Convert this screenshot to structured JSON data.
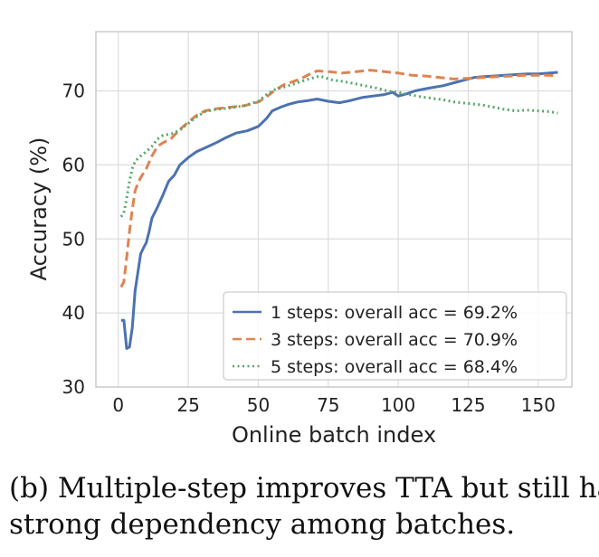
{
  "chart_data": {
    "type": "line",
    "xlabel": "Online batch index",
    "ylabel": "Accuracy (%)",
    "xlim": [
      -8,
      162
    ],
    "ylim": [
      30,
      78
    ],
    "xticks": [
      0,
      25,
      50,
      75,
      100,
      125,
      150
    ],
    "yticks": [
      30,
      40,
      50,
      60,
      70
    ],
    "grid": true,
    "legend_position": "lower-right",
    "series": [
      {
        "name": "1 steps: overall acc = 69.2%",
        "color": "#4c72b0",
        "style": "solid",
        "points": [
          [
            1,
            39
          ],
          [
            2,
            39
          ],
          [
            3,
            35.2
          ],
          [
            4,
            35.4
          ],
          [
            5,
            38
          ],
          [
            6,
            43
          ],
          [
            7,
            45.5
          ],
          [
            8,
            48
          ],
          [
            9,
            48.8
          ],
          [
            10,
            49.5
          ],
          [
            11,
            51
          ],
          [
            12,
            52.8
          ],
          [
            14,
            54.3
          ],
          [
            16,
            56
          ],
          [
            18,
            57.8
          ],
          [
            20,
            58.6
          ],
          [
            22,
            60
          ],
          [
            25,
            61
          ],
          [
            28,
            61.8
          ],
          [
            31,
            62.3
          ],
          [
            35,
            63
          ],
          [
            38,
            63.6
          ],
          [
            42,
            64.3
          ],
          [
            46,
            64.6
          ],
          [
            50,
            65.2
          ],
          [
            53,
            66.3
          ],
          [
            55,
            67.3
          ],
          [
            58,
            67.8
          ],
          [
            61,
            68.2
          ],
          [
            64,
            68.5
          ],
          [
            68,
            68.7
          ],
          [
            71,
            68.9
          ],
          [
            75,
            68.6
          ],
          [
            79,
            68.4
          ],
          [
            83,
            68.7
          ],
          [
            87,
            69.1
          ],
          [
            91,
            69.3
          ],
          [
            95,
            69.5
          ],
          [
            98,
            69.8
          ],
          [
            100,
            69.3
          ],
          [
            103,
            69.6
          ],
          [
            106,
            70
          ],
          [
            110,
            70.3
          ],
          [
            113,
            70.5
          ],
          [
            116,
            70.7
          ],
          [
            120,
            71.1
          ],
          [
            124,
            71.5
          ],
          [
            127,
            71.8
          ],
          [
            130,
            71.9
          ],
          [
            134,
            72
          ],
          [
            138,
            72.1
          ],
          [
            142,
            72.2
          ],
          [
            146,
            72.3
          ],
          [
            150,
            72.3
          ],
          [
            154,
            72.4
          ],
          [
            157,
            72.5
          ]
        ]
      },
      {
        "name": "3 steps: overall acc = 70.9%",
        "color": "#dd8452",
        "style": "dashed",
        "points": [
          [
            1,
            43.5
          ],
          [
            2,
            44.2
          ],
          [
            3,
            47.5
          ],
          [
            4,
            51
          ],
          [
            5,
            54
          ],
          [
            6,
            56.5
          ],
          [
            7,
            57.5
          ],
          [
            8,
            58.3
          ],
          [
            10,
            59.5
          ],
          [
            12,
            61.2
          ],
          [
            14,
            62.5
          ],
          [
            16,
            63
          ],
          [
            19,
            63.6
          ],
          [
            22,
            64.8
          ],
          [
            25,
            65.8
          ],
          [
            28,
            66.7
          ],
          [
            31,
            67.3
          ],
          [
            35,
            67.6
          ],
          [
            40,
            67.8
          ],
          [
            45,
            68
          ],
          [
            50,
            68.5
          ],
          [
            53,
            69.2
          ],
          [
            56,
            70.1
          ],
          [
            59,
            70.8
          ],
          [
            62,
            71.2
          ],
          [
            65,
            71.6
          ],
          [
            68,
            72.2
          ],
          [
            71,
            72.7
          ],
          [
            75,
            72.6
          ],
          [
            80,
            72.4
          ],
          [
            85,
            72.6
          ],
          [
            90,
            72.8
          ],
          [
            95,
            72.6
          ],
          [
            100,
            72.4
          ],
          [
            105,
            72.1
          ],
          [
            110,
            72
          ],
          [
            115,
            71.8
          ],
          [
            120,
            71.6
          ],
          [
            125,
            71.7
          ],
          [
            130,
            71.8
          ],
          [
            135,
            71.9
          ],
          [
            140,
            72
          ],
          [
            145,
            72.1
          ],
          [
            150,
            72.1
          ],
          [
            154,
            72.1
          ],
          [
            157,
            72
          ]
        ]
      },
      {
        "name": "5 steps: overall acc = 68.4%",
        "color": "#55a868",
        "style": "dotted",
        "points": [
          [
            1,
            53
          ],
          [
            2,
            53.5
          ],
          [
            3,
            55.5
          ],
          [
            4,
            57.8
          ],
          [
            5,
            59.5
          ],
          [
            6,
            60.5
          ],
          [
            8,
            61.2
          ],
          [
            10,
            61.8
          ],
          [
            12,
            62.5
          ],
          [
            14,
            63.5
          ],
          [
            16,
            64
          ],
          [
            19,
            64.2
          ],
          [
            22,
            64.7
          ],
          [
            25,
            65.6
          ],
          [
            28,
            66.5
          ],
          [
            31,
            67.2
          ],
          [
            35,
            67.5
          ],
          [
            40,
            67.7
          ],
          [
            45,
            68
          ],
          [
            50,
            68.6
          ],
          [
            53,
            69.5
          ],
          [
            56,
            70.2
          ],
          [
            60,
            70.6
          ],
          [
            64,
            71.1
          ],
          [
            68,
            71.6
          ],
          [
            72,
            72
          ],
          [
            76,
            71.5
          ],
          [
            80,
            71.3
          ],
          [
            84,
            71
          ],
          [
            88,
            70.7
          ],
          [
            92,
            70.4
          ],
          [
            96,
            70
          ],
          [
            100,
            69.8
          ],
          [
            104,
            69.5
          ],
          [
            108,
            69.2
          ],
          [
            112,
            69
          ],
          [
            116,
            68.8
          ],
          [
            120,
            68.5
          ],
          [
            125,
            68.3
          ],
          [
            130,
            68.1
          ],
          [
            134,
            67.8
          ],
          [
            138,
            67.5
          ],
          [
            142,
            67.3
          ],
          [
            146,
            67.4
          ],
          [
            150,
            67.3
          ],
          [
            154,
            67.2
          ],
          [
            157,
            67
          ]
        ]
      }
    ]
  },
  "caption": {
    "line1": "(b) Multiple-step improves TTA but still has",
    "line2": "strong dependency among batches."
  }
}
